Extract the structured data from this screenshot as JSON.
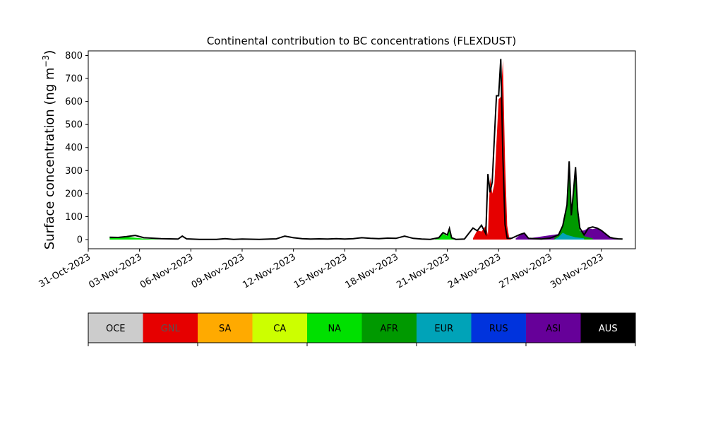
{
  "chart_data": {
    "type": "area",
    "title": "Continental contribution to BC concentrations (FLEXDUST)",
    "ylabel": "Surface concentration (ng m",
    "ylabel_unit_sup": "−3",
    "ylabel_close": ")",
    "xlabel": "",
    "ylim": [
      -40,
      820
    ],
    "xlim": [
      "2023-10-31",
      "2023-12-02"
    ],
    "grid": false,
    "y_ticks": [
      0,
      100,
      200,
      300,
      400,
      500,
      600,
      700,
      800
    ],
    "x_ticks": [
      "31-Oct-2023",
      "03-Nov-2023",
      "06-Nov-2023",
      "09-Nov-2023",
      "12-Nov-2023",
      "15-Nov-2023",
      "18-Nov-2023",
      "21-Nov-2023",
      "24-Nov-2023",
      "27-Nov-2023",
      "30-Nov-2023"
    ],
    "legend": {
      "placement": "bottom",
      "entries": [
        {
          "name": "OCE",
          "color": "#cccccc",
          "text_color": "#000000"
        },
        {
          "name": "GNL",
          "color": "#e60000",
          "text_color": "#555555"
        },
        {
          "name": "SA",
          "color": "#ffaa00",
          "text_color": "#000000"
        },
        {
          "name": "CA",
          "color": "#ccff00",
          "text_color": "#000000"
        },
        {
          "name": "NA",
          "color": "#00e000",
          "text_color": "#000000"
        },
        {
          "name": "AFR",
          "color": "#009900",
          "text_color": "#000000"
        },
        {
          "name": "EUR",
          "color": "#00a3b8",
          "text_color": "#000000"
        },
        {
          "name": "RUS",
          "color": "#0033dd",
          "text_color": "#000000"
        },
        {
          "name": "ASI",
          "color": "#660099",
          "text_color": "#000000"
        },
        {
          "name": "AUS",
          "color": "#000000",
          "text_color": "#ffffff"
        }
      ]
    },
    "series": [
      {
        "name": "NA",
        "color": "#00e000",
        "x": [
          "2023-11-01T06",
          "2023-11-01T18",
          "2023-11-02T06",
          "2023-11-02T18",
          "2023-11-03T06",
          "2023-11-03T18",
          "2023-11-04T06",
          "2023-11-20T06",
          "2023-11-20T12",
          "2023-11-20T18",
          "2023-11-21T00",
          "2023-11-21T03",
          "2023-11-21T06",
          "2023-11-21T12"
        ],
        "values": [
          8,
          8,
          12,
          8,
          4,
          2,
          0,
          0,
          8,
          25,
          15,
          40,
          5,
          0
        ]
      },
      {
        "name": "GNL",
        "color": "#e60000",
        "x": [
          "2023-11-22T12",
          "2023-11-22T18",
          "2023-11-23T00",
          "2023-11-23T06",
          "2023-11-23T09",
          "2023-11-23T12",
          "2023-11-23T15",
          "2023-11-23T18",
          "2023-11-23T21",
          "2023-11-24T00",
          "2023-11-24T03",
          "2023-11-24T06",
          "2023-11-24T09",
          "2023-11-24T12",
          "2023-11-24T15",
          "2023-11-24T18"
        ],
        "values": [
          5,
          40,
          35,
          60,
          20,
          270,
          200,
          240,
          420,
          610,
          620,
          780,
          350,
          60,
          5,
          0
        ]
      },
      {
        "name": "ASI",
        "color": "#660099",
        "x": [
          "2023-11-25T00",
          "2023-11-25T06",
          "2023-11-25T12",
          "2023-11-25T18",
          "2023-11-29T00",
          "2023-11-29T06",
          "2023-11-29T12",
          "2023-11-29T18",
          "2023-11-30T00",
          "2023-11-30T06",
          "2023-11-30T12",
          "2023-11-30T18",
          "2023-12-01T00"
        ],
        "values": [
          5,
          20,
          25,
          5,
          40,
          50,
          45,
          50,
          40,
          25,
          10,
          5,
          2
        ]
      },
      {
        "name": "AFR",
        "color": "#009900",
        "x": [
          "2023-11-27T06",
          "2023-11-27T12",
          "2023-11-27T18",
          "2023-11-28T00",
          "2023-11-28T03",
          "2023-11-28T06",
          "2023-11-28T09",
          "2023-11-28T12",
          "2023-11-28T15",
          "2023-11-28T18",
          "2023-11-29T00",
          "2023-11-29T06",
          "2023-11-29T12"
        ],
        "values": [
          5,
          20,
          60,
          150,
          335,
          100,
          200,
          310,
          120,
          40,
          15,
          10,
          5
        ]
      },
      {
        "name": "EUR",
        "color": "#00a3b8",
        "x": [
          "2023-11-27T06",
          "2023-11-27T12",
          "2023-11-27T18",
          "2023-11-28T00",
          "2023-11-28T12",
          "2023-11-29T00"
        ],
        "values": [
          0,
          10,
          30,
          20,
          10,
          5
        ]
      },
      {
        "name": "AUS",
        "color": "#000000",
        "x": [
          "2023-11-01T06",
          "2023-11-01T18",
          "2023-11-02T06",
          "2023-11-02T18",
          "2023-11-03T06",
          "2023-11-04T06",
          "2023-11-05T06",
          "2023-11-05T12",
          "2023-11-05T18",
          "2023-11-06T12",
          "2023-11-07T12",
          "2023-11-08T00",
          "2023-11-08T12",
          "2023-11-09T00",
          "2023-11-10T00",
          "2023-11-11T00",
          "2023-11-11T12",
          "2023-11-12T00",
          "2023-11-12T12",
          "2023-11-13T00",
          "2023-11-13T12",
          "2023-11-14T00",
          "2023-11-14T12",
          "2023-11-15T00",
          "2023-11-15T12",
          "2023-11-16T00",
          "2023-11-16T12",
          "2023-11-17T00",
          "2023-11-17T12",
          "2023-11-18T00",
          "2023-11-18T12",
          "2023-11-19T00",
          "2023-11-19T12",
          "2023-11-20T00",
          "2023-11-20T12",
          "2023-11-20T18",
          "2023-11-21T00",
          "2023-11-21T03",
          "2023-11-21T06",
          "2023-11-21T12",
          "2023-11-22T00",
          "2023-11-22T12",
          "2023-11-22T18",
          "2023-11-23T00",
          "2023-11-23T06",
          "2023-11-23T09",
          "2023-11-23T12",
          "2023-11-23T15",
          "2023-11-23T18",
          "2023-11-23T21",
          "2023-11-24T00",
          "2023-11-24T03",
          "2023-11-24T06",
          "2023-11-24T09",
          "2023-11-24T12",
          "2023-11-24T18",
          "2023-11-25T06",
          "2023-11-25T12",
          "2023-11-25T18",
          "2023-11-26T12",
          "2023-11-27T00",
          "2023-11-27T12",
          "2023-11-27T18",
          "2023-11-28T00",
          "2023-11-28T03",
          "2023-11-28T06",
          "2023-11-28T09",
          "2023-11-28T12",
          "2023-11-28T15",
          "2023-11-28T18",
          "2023-11-29T00",
          "2023-11-29T06",
          "2023-11-29T12",
          "2023-11-29T18",
          "2023-11-30T00",
          "2023-11-30T06",
          "2023-11-30T12",
          "2023-11-30T18",
          "2023-12-01T00",
          "2023-12-01T06"
        ],
        "values": [
          10,
          9,
          13,
          18,
          8,
          4,
          2,
          15,
          3,
          1,
          1,
          4,
          1,
          2,
          1,
          3,
          15,
          8,
          4,
          2,
          3,
          2,
          4,
          2,
          4,
          8,
          5,
          4,
          6,
          5,
          15,
          5,
          2,
          1,
          8,
          30,
          20,
          48,
          8,
          1,
          2,
          50,
          38,
          62,
          25,
          285,
          205,
          250,
          440,
          625,
          625,
          785,
          360,
          65,
          5,
          5,
          22,
          28,
          5,
          2,
          6,
          20,
          60,
          150,
          340,
          105,
          205,
          315,
          125,
          50,
          20,
          50,
          55,
          50,
          40,
          25,
          10,
          5,
          3,
          2
        ]
      }
    ]
  }
}
